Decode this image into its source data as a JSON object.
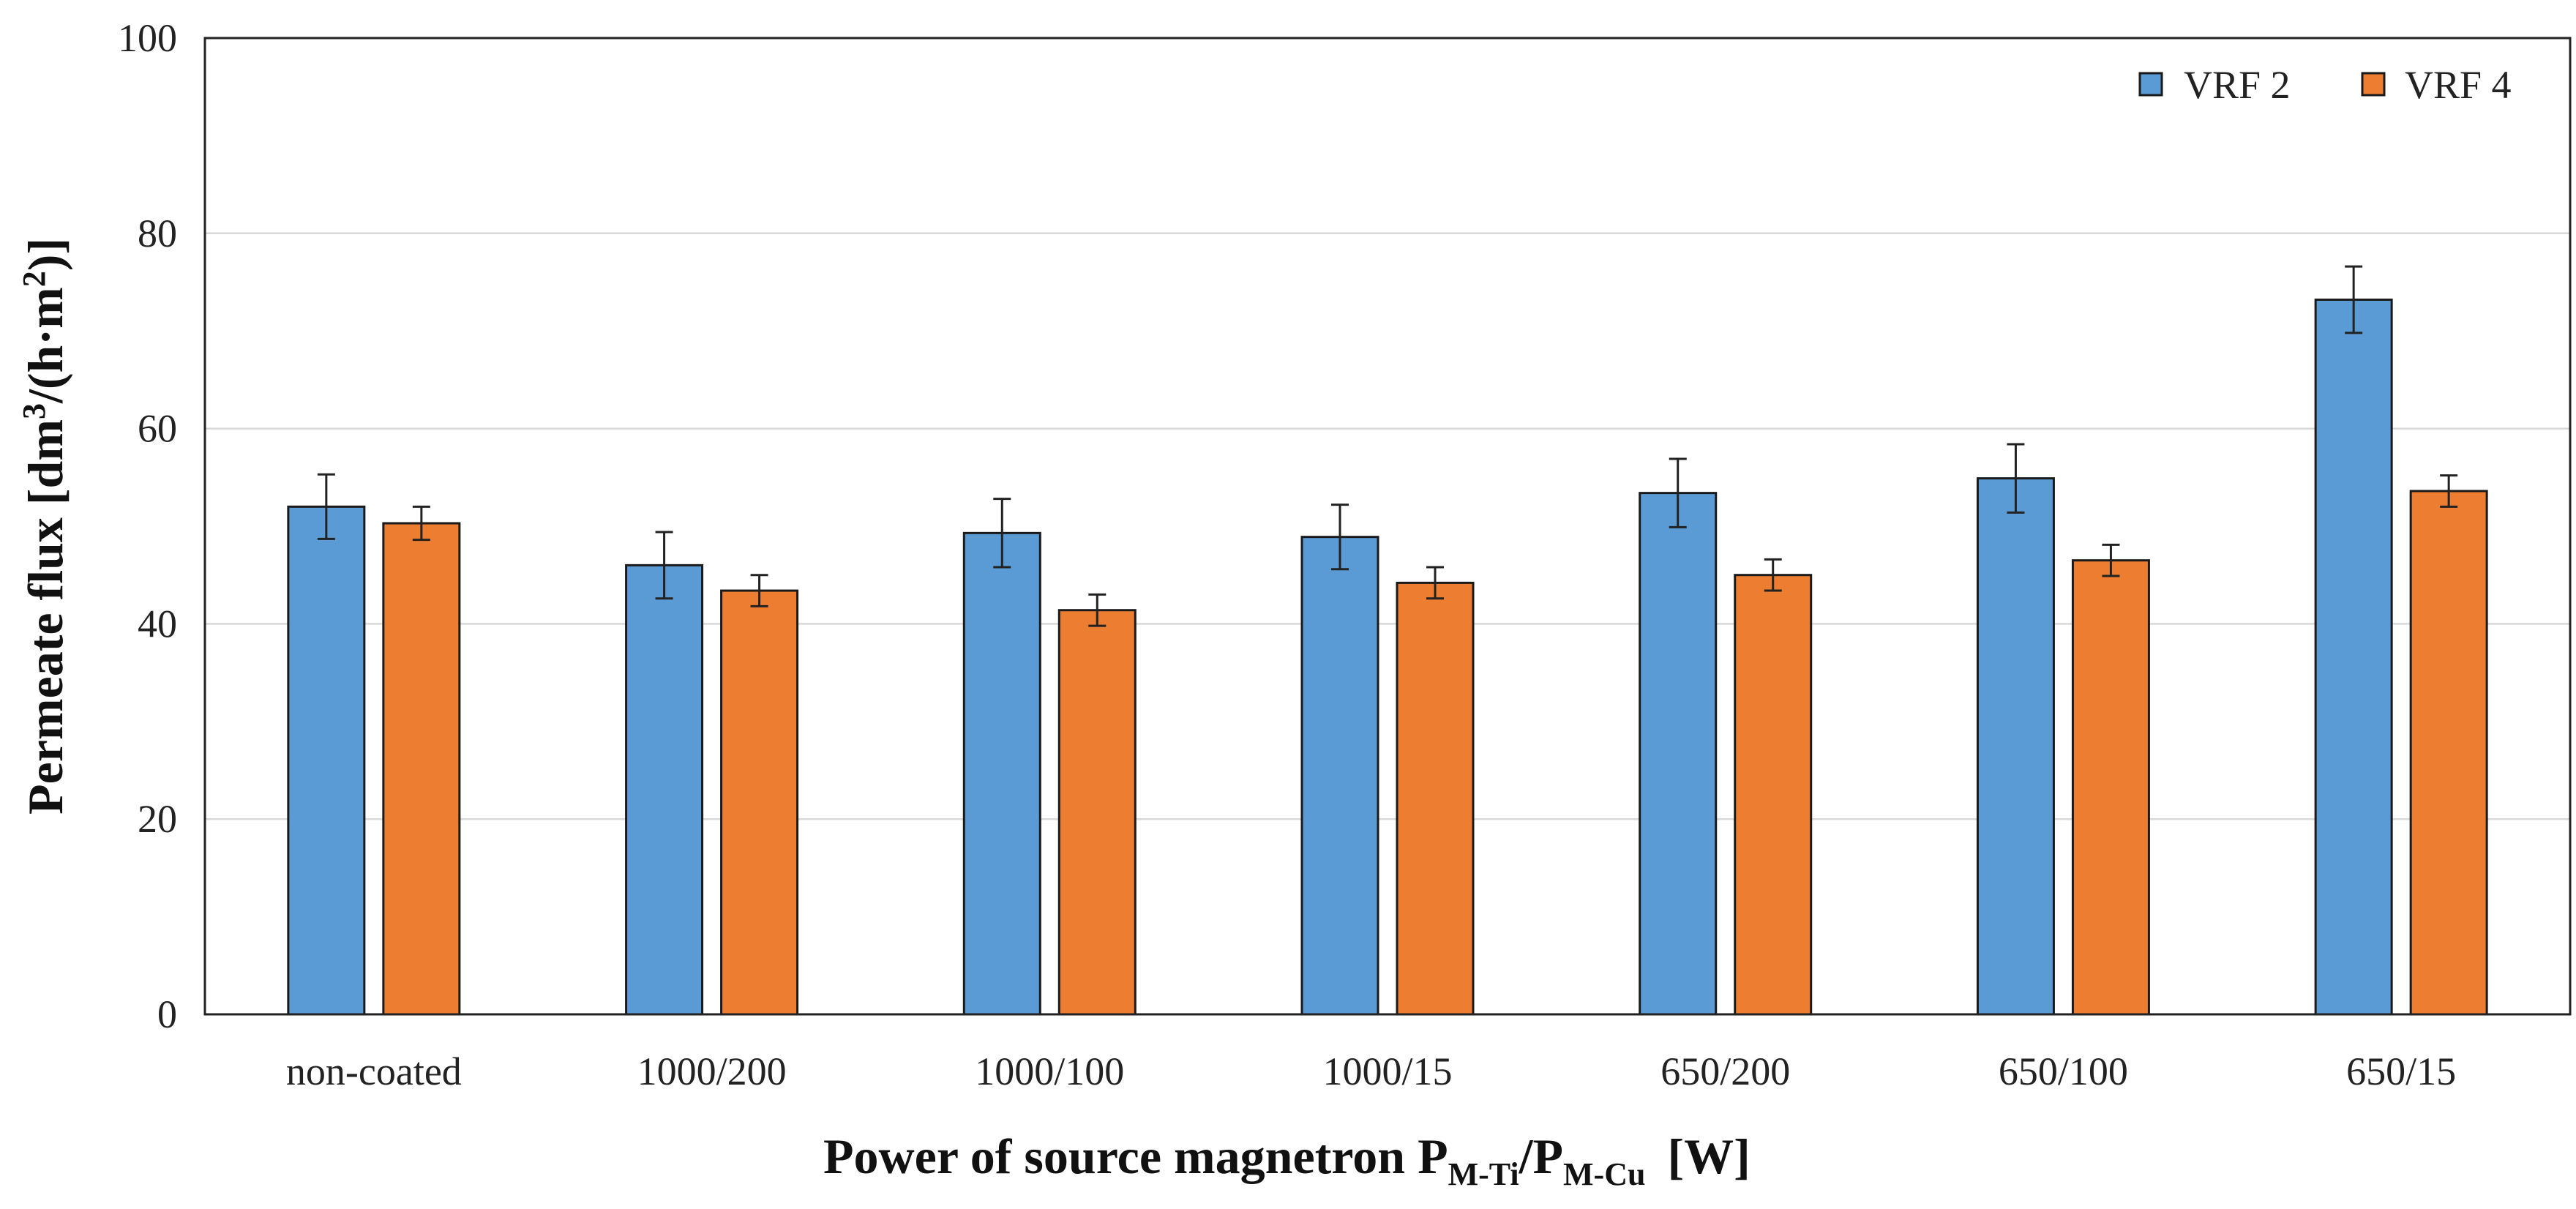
{
  "chart_data": {
    "type": "bar",
    "title": "",
    "categories": [
      "non-coated",
      "1000/200",
      "1000/100",
      "1000/15",
      "650/200",
      "650/100",
      "650/15"
    ],
    "series": [
      {
        "name": "VRF 2",
        "color": "#5b9bd5",
        "values": [
          52.0,
          46.0,
          49.3,
          48.9,
          53.4,
          54.9,
          73.2
        ],
        "errors": [
          3.3,
          3.4,
          3.5,
          3.3,
          3.5,
          3.5,
          3.4
        ]
      },
      {
        "name": "VRF 4",
        "color": "#ed7d31",
        "values": [
          50.3,
          43.4,
          41.4,
          44.2,
          45.0,
          46.5,
          53.6
        ],
        "errors": [
          1.7,
          1.6,
          1.6,
          1.6,
          1.6,
          1.6,
          1.6
        ]
      }
    ],
    "ylim": [
      0,
      100
    ],
    "yticks": [
      0,
      20,
      40,
      60,
      80,
      100
    ],
    "grid": true,
    "legend_position": "top-right",
    "ylabel": {
      "main": "Permeate flux [dm",
      "sup1": "3",
      "mid": "/(h·m",
      "sup2": "2",
      "end": ")]"
    },
    "xlabel": {
      "main": "Power of source magnetron P",
      "sub1": "M-Ti",
      "slash": "/P",
      "sub2": "M-Cu",
      "unit": "[W]"
    }
  }
}
